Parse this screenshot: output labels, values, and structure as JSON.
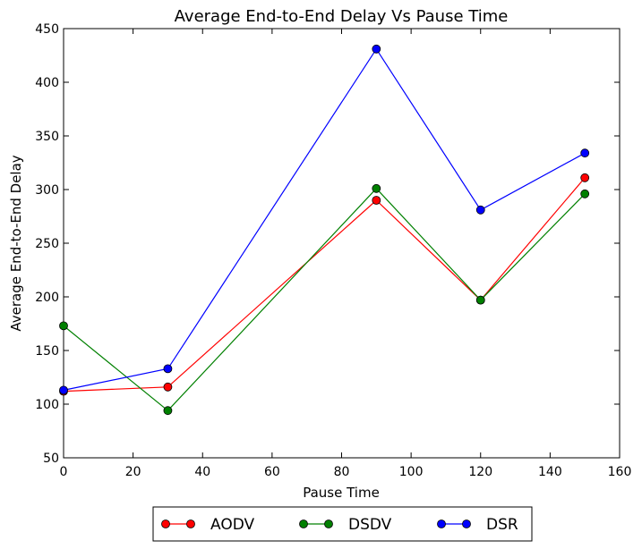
{
  "chart_data": {
    "type": "line",
    "title": "Average End-to-End Delay Vs Pause Time",
    "xlabel": "Pause Time",
    "ylabel": "Average End-to-End Delay",
    "xlim": [
      0,
      160
    ],
    "ylim": [
      50,
      450
    ],
    "xticks": [
      0,
      20,
      40,
      60,
      80,
      100,
      120,
      140,
      160
    ],
    "yticks": [
      50,
      100,
      150,
      200,
      250,
      300,
      350,
      400,
      450
    ],
    "grid": false,
    "legend_position": "bottom-center",
    "x": [
      0,
      30,
      90,
      120,
      150
    ],
    "series": [
      {
        "name": "AODV",
        "color": "#ff0000",
        "values": [
          112,
          116,
          290,
          197,
          311
        ]
      },
      {
        "name": "DSDV",
        "color": "#008000",
        "values": [
          173,
          94,
          301,
          197,
          296
        ]
      },
      {
        "name": "DSR",
        "color": "#0000ff",
        "values": [
          113,
          133,
          431,
          281,
          334
        ]
      }
    ]
  }
}
